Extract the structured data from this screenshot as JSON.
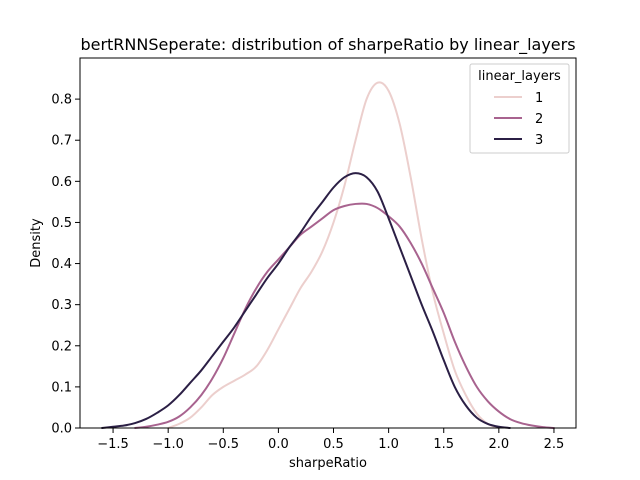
{
  "chart_data": {
    "type": "line",
    "title": "bertRNNSeperate: distribution of sharpeRatio by linear_layers",
    "xlabel": "sharpeRatio",
    "ylabel": "Density",
    "xlim": [
      -1.8,
      2.7
    ],
    "ylim": [
      0.0,
      0.9
    ],
    "x_ticks": [
      -1.5,
      -1.0,
      -0.5,
      0.0,
      0.5,
      1.0,
      1.5,
      2.0,
      2.5
    ],
    "x_tick_labels": [
      "−1.5",
      "−1.0",
      "−0.5",
      "0.0",
      "0.5",
      "1.0",
      "1.5",
      "2.0",
      "2.5"
    ],
    "y_ticks": [
      0.0,
      0.1,
      0.2,
      0.3,
      0.4,
      0.5,
      0.6,
      0.7,
      0.8
    ],
    "y_tick_labels": [
      "0.0",
      "0.1",
      "0.2",
      "0.3",
      "0.4",
      "0.5",
      "0.6",
      "0.7",
      "0.8"
    ],
    "grid": false,
    "legend": {
      "title": "linear_layers",
      "placement": "top-right"
    },
    "series": [
      {
        "name": "1",
        "color": "#eccfcd",
        "points": [
          [
            -1.0,
            0.0
          ],
          [
            -0.9,
            0.01
          ],
          [
            -0.8,
            0.025
          ],
          [
            -0.7,
            0.05
          ],
          [
            -0.6,
            0.08
          ],
          [
            -0.5,
            0.1
          ],
          [
            -0.4,
            0.115
          ],
          [
            -0.3,
            0.13
          ],
          [
            -0.2,
            0.15
          ],
          [
            -0.1,
            0.19
          ],
          [
            0.0,
            0.24
          ],
          [
            0.1,
            0.29
          ],
          [
            0.2,
            0.34
          ],
          [
            0.3,
            0.38
          ],
          [
            0.4,
            0.43
          ],
          [
            0.5,
            0.5
          ],
          [
            0.6,
            0.59
          ],
          [
            0.7,
            0.7
          ],
          [
            0.8,
            0.8
          ],
          [
            0.9,
            0.84
          ],
          [
            1.0,
            0.82
          ],
          [
            1.1,
            0.74
          ],
          [
            1.2,
            0.61
          ],
          [
            1.3,
            0.46
          ],
          [
            1.4,
            0.33
          ],
          [
            1.5,
            0.23
          ],
          [
            1.6,
            0.14
          ],
          [
            1.7,
            0.08
          ],
          [
            1.8,
            0.035
          ],
          [
            1.9,
            0.01
          ],
          [
            2.0,
            0.0
          ]
        ]
      },
      {
        "name": "2",
        "color": "#a8638f",
        "points": [
          [
            -1.3,
            0.0
          ],
          [
            -1.2,
            0.003
          ],
          [
            -1.1,
            0.008
          ],
          [
            -1.0,
            0.015
          ],
          [
            -0.9,
            0.028
          ],
          [
            -0.8,
            0.05
          ],
          [
            -0.7,
            0.08
          ],
          [
            -0.6,
            0.12
          ],
          [
            -0.5,
            0.17
          ],
          [
            -0.4,
            0.23
          ],
          [
            -0.3,
            0.29
          ],
          [
            -0.2,
            0.34
          ],
          [
            -0.1,
            0.38
          ],
          [
            0.0,
            0.41
          ],
          [
            0.1,
            0.44
          ],
          [
            0.2,
            0.47
          ],
          [
            0.3,
            0.49
          ],
          [
            0.4,
            0.51
          ],
          [
            0.5,
            0.53
          ],
          [
            0.6,
            0.54
          ],
          [
            0.7,
            0.545
          ],
          [
            0.8,
            0.545
          ],
          [
            0.9,
            0.535
          ],
          [
            1.0,
            0.515
          ],
          [
            1.1,
            0.49
          ],
          [
            1.2,
            0.45
          ],
          [
            1.3,
            0.4
          ],
          [
            1.4,
            0.34
          ],
          [
            1.5,
            0.28
          ],
          [
            1.6,
            0.21
          ],
          [
            1.7,
            0.15
          ],
          [
            1.8,
            0.1
          ],
          [
            1.9,
            0.065
          ],
          [
            2.0,
            0.04
          ],
          [
            2.1,
            0.022
          ],
          [
            2.2,
            0.012
          ],
          [
            2.3,
            0.006
          ],
          [
            2.4,
            0.002
          ],
          [
            2.5,
            0.0
          ]
        ]
      },
      {
        "name": "3",
        "color": "#2b1f45",
        "points": [
          [
            -1.6,
            0.0
          ],
          [
            -1.5,
            0.003
          ],
          [
            -1.4,
            0.006
          ],
          [
            -1.3,
            0.012
          ],
          [
            -1.2,
            0.022
          ],
          [
            -1.1,
            0.037
          ],
          [
            -1.0,
            0.055
          ],
          [
            -0.9,
            0.08
          ],
          [
            -0.8,
            0.11
          ],
          [
            -0.7,
            0.14
          ],
          [
            -0.6,
            0.175
          ],
          [
            -0.5,
            0.21
          ],
          [
            -0.4,
            0.245
          ],
          [
            -0.3,
            0.285
          ],
          [
            -0.2,
            0.325
          ],
          [
            -0.1,
            0.365
          ],
          [
            0.0,
            0.4
          ],
          [
            0.1,
            0.44
          ],
          [
            0.2,
            0.475
          ],
          [
            0.3,
            0.515
          ],
          [
            0.4,
            0.55
          ],
          [
            0.5,
            0.585
          ],
          [
            0.6,
            0.61
          ],
          [
            0.7,
            0.62
          ],
          [
            0.8,
            0.61
          ],
          [
            0.9,
            0.575
          ],
          [
            1.0,
            0.51
          ],
          [
            1.1,
            0.44
          ],
          [
            1.2,
            0.37
          ],
          [
            1.3,
            0.3
          ],
          [
            1.4,
            0.235
          ],
          [
            1.5,
            0.165
          ],
          [
            1.6,
            0.1
          ],
          [
            1.7,
            0.055
          ],
          [
            1.8,
            0.025
          ],
          [
            1.9,
            0.01
          ],
          [
            2.0,
            0.003
          ],
          [
            2.1,
            0.0
          ]
        ]
      }
    ]
  }
}
